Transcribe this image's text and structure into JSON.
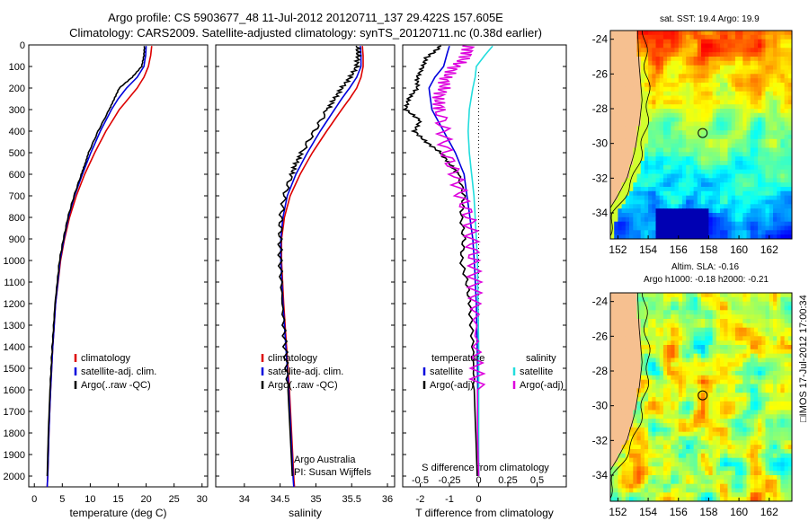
{
  "header": {
    "line1": "Argo profile: CS 5903677_48 11-Jul-2012 20120711_137 29.422S 157.605E",
    "line2": "Climatology: CARS2009. Satellite-adjusted climatology: synTS_20120711.nc (0.38d earlier)"
  },
  "stamp": "□IMOS 17-Jul-2012 17:00:34",
  "colors": {
    "red": "#dd0000",
    "blue": "#0000dd",
    "black": "#000000",
    "cyan": "#22dddd",
    "magenta": "#dd00dd",
    "land": "#f6c090"
  },
  "chart_data": [
    {
      "type": "line",
      "id": "temperature",
      "xlabel": "temperature (deg C)",
      "ylabel": "",
      "xlim": [
        -1,
        31
      ],
      "ylim": [
        2050,
        0
      ],
      "x_ticks": [
        0,
        5,
        10,
        15,
        20,
        25,
        30
      ],
      "y_ticks": [
        0,
        100,
        200,
        300,
        400,
        500,
        600,
        700,
        800,
        900,
        1000,
        1100,
        1200,
        1300,
        1400,
        1500,
        1600,
        1700,
        1800,
        1900,
        2000
      ],
      "legend": [
        "climatology",
        "satellite-adj. clim.",
        "Argo(..raw -QC)"
      ],
      "legend_position": "bottom-right",
      "annotations": [],
      "series": [
        {
          "name": "climatology",
          "color": "red",
          "depth": [
            5,
            50,
            100,
            150,
            200,
            250,
            300,
            400,
            500,
            600,
            700,
            800,
            900,
            1000,
            1200,
            1400,
            1600,
            1800,
            2000,
            2050
          ],
          "values": [
            21.0,
            20.8,
            20.4,
            19.6,
            18.4,
            16.8,
            15.2,
            12.8,
            10.8,
            9.0,
            7.5,
            6.3,
            5.4,
            4.7,
            3.8,
            3.3,
            2.9,
            2.6,
            2.4,
            2.3
          ]
        },
        {
          "name": "satellite-adj. clim.",
          "color": "blue",
          "depth": [
            5,
            50,
            100,
            150,
            200,
            250,
            300,
            400,
            500,
            600,
            700,
            800,
            900,
            1000,
            1200,
            1400,
            1600,
            1800,
            2000,
            2050
          ],
          "values": [
            20.0,
            19.9,
            19.6,
            18.4,
            16.5,
            15.0,
            13.8,
            11.8,
            10.1,
            8.6,
            7.2,
            6.1,
            5.3,
            4.6,
            3.8,
            3.3,
            2.9,
            2.6,
            2.4,
            2.3
          ]
        },
        {
          "name": "Argo(..raw -QC)",
          "color": "black",
          "depth": [
            5,
            50,
            100,
            150,
            200,
            250,
            300,
            400,
            500,
            550,
            600,
            700,
            800,
            900,
            1000,
            1200,
            1400,
            1600,
            1800,
            2000
          ],
          "values": [
            19.7,
            19.6,
            19.2,
            17.5,
            15.2,
            14.3,
            13.4,
            11.4,
            9.7,
            9.1,
            8.4,
            7.1,
            6.0,
            5.2,
            4.5,
            3.7,
            3.2,
            2.8,
            2.5,
            2.3
          ]
        }
      ]
    },
    {
      "type": "line",
      "id": "salinity",
      "xlabel": "salinity",
      "ylabel": "",
      "xlim": [
        33.6,
        36.1
      ],
      "ylim": [
        2050,
        0
      ],
      "x_ticks": [
        34,
        34.5,
        35,
        35.5,
        36
      ],
      "legend": [
        "climatology",
        "satellite-adj. clim.",
        "Argo(..raw -QC)"
      ],
      "legend_position": "bottom-right",
      "annotations": [
        "Argo Australia",
        "PI: Susan Wijffels"
      ],
      "series": [
        {
          "name": "climatology",
          "color": "red",
          "depth": [
            5,
            50,
            100,
            150,
            200,
            250,
            300,
            400,
            500,
            600,
            700,
            800,
            900,
            1000,
            1200,
            1400,
            1600,
            1800,
            2000,
            2050
          ],
          "values": [
            35.65,
            35.66,
            35.66,
            35.63,
            35.57,
            35.47,
            35.36,
            35.15,
            34.95,
            34.78,
            34.64,
            34.56,
            34.52,
            34.52,
            34.55,
            34.59,
            34.63,
            34.66,
            34.69,
            34.7
          ]
        },
        {
          "name": "satellite-adj. clim.",
          "color": "blue",
          "depth": [
            5,
            50,
            100,
            150,
            200,
            250,
            300,
            400,
            500,
            600,
            700,
            800,
            900,
            1000,
            1200,
            1400,
            1600,
            1800,
            2000,
            2050
          ],
          "values": [
            35.62,
            35.63,
            35.63,
            35.57,
            35.47,
            35.36,
            35.26,
            35.06,
            34.88,
            34.72,
            34.6,
            34.54,
            34.51,
            34.51,
            34.54,
            34.58,
            34.62,
            34.65,
            34.68,
            34.69
          ]
        },
        {
          "name": "Argo(..raw -QC)",
          "color": "black",
          "depth": [
            5,
            50,
            100,
            150,
            200,
            250,
            300,
            400,
            500,
            550,
            600,
            700,
            800,
            900,
            1000,
            1200,
            1400,
            1600,
            1800,
            2000
          ],
          "values": [
            35.58,
            35.59,
            35.57,
            35.48,
            35.36,
            35.26,
            35.16,
            34.98,
            34.8,
            34.72,
            34.66,
            34.56,
            34.51,
            34.5,
            34.5,
            34.53,
            34.57,
            34.61,
            34.64,
            34.67
          ]
        }
      ]
    },
    {
      "type": "line",
      "id": "difference",
      "xlabel": "T difference from climatology",
      "title_bottom": "S difference from climatology",
      "xlim": [
        -2.6,
        3.0
      ],
      "ylim": [
        2050,
        0
      ],
      "x_ticks": [
        -2,
        -1,
        0,
        1,
        2
      ],
      "x_tick_labels": [
        "-2",
        "-1",
        "0",
        "",
        ""
      ],
      "s_ticks": [
        -0.5,
        -0.25,
        0,
        0.25,
        0.5
      ],
      "s_tick_labels": [
        "-0.5",
        "-0.25",
        "0",
        "0.25",
        "0.5"
      ],
      "legend_groups": [
        {
          "heading": "temperature",
          "items": [
            "satellite",
            "Argo(-adj)"
          ]
        },
        {
          "heading": "salinity",
          "items": [
            "satellite",
            "Argo(-adj)"
          ]
        }
      ],
      "legend_position": "bottom",
      "series": [
        {
          "name": "temperature satellite",
          "color": "blue",
          "depth": [
            5,
            50,
            100,
            150,
            200,
            300,
            400,
            500,
            600,
            700,
            800,
            900,
            1000,
            1200,
            1400,
            1600,
            1800,
            2000
          ],
          "values": [
            -1.0,
            -1.1,
            -1.2,
            -1.5,
            -1.7,
            -1.6,
            -1.2,
            -0.8,
            -0.5,
            -0.4,
            -0.3,
            -0.2,
            -0.15,
            -0.08,
            -0.05,
            -0.03,
            -0.02,
            0
          ]
        },
        {
          "name": "temperature Argo(-adj)",
          "color": "black",
          "depth": [
            5,
            30,
            60,
            100,
            150,
            200,
            250,
            300,
            350,
            400,
            450,
            500,
            550,
            600,
            700,
            800,
            900,
            1000,
            1100,
            1200,
            1400,
            1600,
            1800,
            2000
          ],
          "values": [
            -1.3,
            -1.5,
            -1.8,
            -1.9,
            -2.1,
            -2.1,
            -2.4,
            -2.5,
            -2.0,
            -2.2,
            -1.8,
            -1.3,
            -1.0,
            -0.7,
            -0.5,
            -0.6,
            -0.5,
            -0.6,
            -0.4,
            -0.3,
            -0.2,
            -0.15,
            -0.1,
            -0.05
          ]
        },
        {
          "name": "salinity satellite",
          "color": "cyan",
          "depth": [
            5,
            50,
            100,
            150,
            200,
            300,
            400,
            500,
            600,
            700,
            800,
            900,
            1000,
            1200,
            1400,
            1600,
            1800,
            2000
          ],
          "values": [
            0.12,
            0.05,
            -0.02,
            -0.03,
            -0.05,
            -0.08,
            -0.09,
            -0.08,
            -0.06,
            -0.04,
            -0.03,
            -0.02,
            -0.01,
            -0.005,
            0,
            0,
            0,
            0
          ]
        },
        {
          "name": "salinity Argo(-adj)",
          "color": "magenta",
          "depth": [
            5,
            50,
            100,
            150,
            200,
            250,
            300,
            400,
            500,
            600,
            700,
            800,
            900,
            1000,
            1200,
            1400,
            1600,
            1800,
            2000
          ],
          "values": [
            -0.08,
            -0.1,
            -0.2,
            -0.28,
            -0.3,
            -0.35,
            -0.33,
            -0.3,
            -0.28,
            -0.2,
            -0.15,
            -0.08,
            -0.06,
            -0.04,
            -0.03,
            -0.02,
            -0.01,
            -0.01,
            0
          ]
        }
      ]
    },
    {
      "type": "heatmap",
      "id": "sst_map",
      "title": "sat. SST: 19.4 Argo: 19.9",
      "xlim": [
        151.5,
        163.5
      ],
      "ylim": [
        -35.5,
        -23.5
      ],
      "x_ticks": [
        152,
        154,
        156,
        158,
        160,
        162
      ],
      "y_ticks": [
        -24,
        -26,
        -28,
        -30,
        -32,
        -34
      ],
      "marker": {
        "lon": 157.6,
        "lat": -29.4
      }
    },
    {
      "type": "heatmap",
      "id": "sla_map",
      "title_line1": "Altim. SLA: -0.16",
      "title_line2": "Argo h1000: -0.18 h2000: -0.21",
      "xlim": [
        151.5,
        163.5
      ],
      "ylim": [
        -35.5,
        -23.5
      ],
      "x_ticks": [
        152,
        154,
        156,
        158,
        160,
        162
      ],
      "y_ticks": [
        -24,
        -26,
        -28,
        -30,
        -32,
        -34
      ],
      "marker": {
        "lon": 157.6,
        "lat": -29.4
      }
    }
  ]
}
